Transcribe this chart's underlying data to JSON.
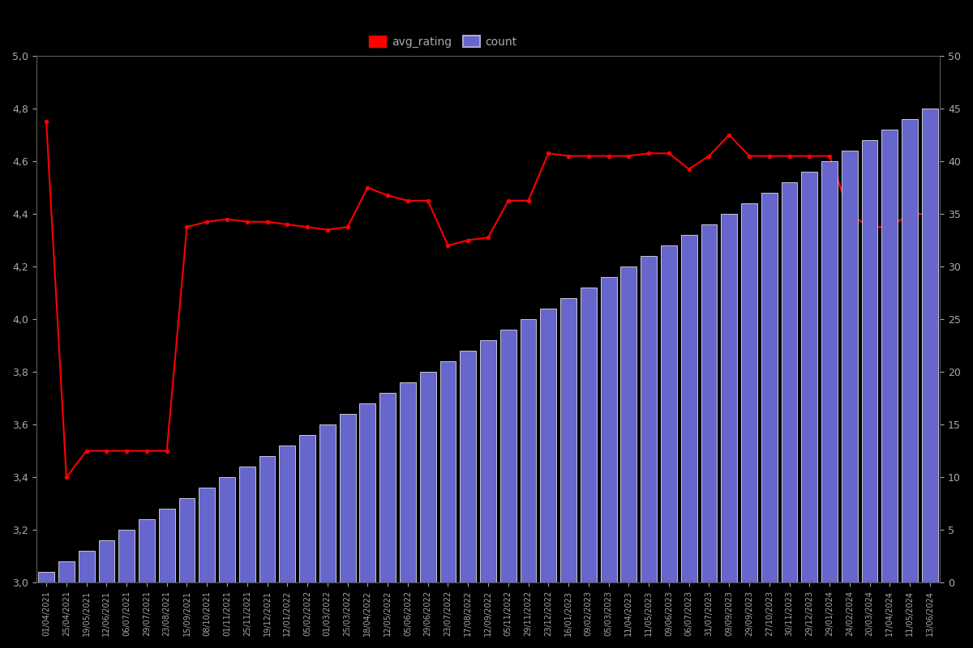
{
  "background_color": "#000000",
  "text_color": "#aaaaaa",
  "bar_color": "#6666cc",
  "bar_edge_color": "#ffffff",
  "line_color": "#ff0000",
  "line_marker": "o",
  "line_markersize": 3,
  "left_ylim": [
    3.0,
    5.0
  ],
  "right_ylim": [
    0,
    50
  ],
  "left_yticks": [
    3.0,
    3.2,
    3.4,
    3.6,
    3.8,
    4.0,
    4.2,
    4.4,
    4.6,
    4.8,
    5.0
  ],
  "right_yticks": [
    0,
    5,
    10,
    15,
    20,
    25,
    30,
    35,
    40,
    45,
    50
  ],
  "figsize": [
    12,
    8
  ],
  "dpi": 100,
  "dates": [
    "01/04/2021",
    "25/04/2021",
    "19/05/2021",
    "12/06/2021",
    "06/07/2021",
    "29/07/2021",
    "23/08/2021",
    "15/09/2021",
    "08/10/2021",
    "01/11/2021",
    "25/11/2021",
    "19/12/2021",
    "12/01/2022",
    "05/02/2022",
    "01/03/2022",
    "25/03/2022",
    "18/04/2022",
    "12/05/2022",
    "05/06/2022",
    "29/06/2022",
    "23/07/2022",
    "17/08/2022",
    "12/09/2022",
    "05/11/2022",
    "29/11/2022",
    "23/12/2022",
    "16/01/2023",
    "09/02/2023",
    "05/03/2023",
    "11/04/2023",
    "11/05/2023",
    "09/06/2023",
    "06/07/2023",
    "31/07/2023",
    "09/09/2023",
    "29/09/2023",
    "27/10/2023",
    "30/11/2023",
    "29/12/2023",
    "29/01/2024",
    "24/02/2024",
    "20/03/2024",
    "17/04/2024",
    "11/05/2024",
    "13/06/2024"
  ],
  "counts": [
    1,
    2,
    3,
    4,
    5,
    6,
    7,
    8,
    9,
    10,
    11,
    12,
    13,
    14,
    15,
    16,
    17,
    18,
    19,
    20,
    21,
    22,
    23,
    24,
    25,
    26,
    27,
    28,
    29,
    30,
    31,
    32,
    33,
    34,
    35,
    36,
    37,
    38,
    39,
    40,
    41,
    42,
    43,
    44,
    45
  ],
  "ratings": [
    4.75,
    3.4,
    3.5,
    3.5,
    3.5,
    3.5,
    3.5,
    4.35,
    4.37,
    4.38,
    4.37,
    4.37,
    4.36,
    4.35,
    4.34,
    4.35,
    4.5,
    4.47,
    4.45,
    4.45,
    4.28,
    4.3,
    4.31,
    4.45,
    4.45,
    4.63,
    4.62,
    4.62,
    4.62,
    4.62,
    4.63,
    4.63,
    4.57,
    4.62,
    4.7,
    4.62,
    4.62,
    4.62,
    4.62,
    4.62,
    4.4,
    4.35,
    4.35,
    4.4,
    4.4
  ]
}
